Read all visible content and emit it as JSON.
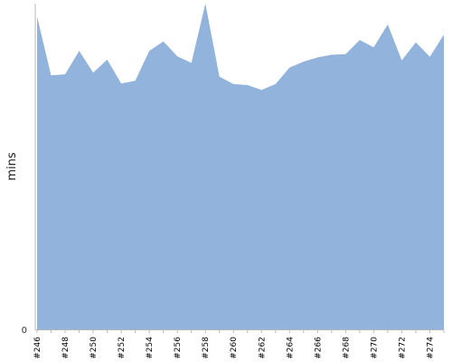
{
  "chart_data": {
    "type": "area",
    "ylabel": "mins",
    "y_tick_labels": [
      "0"
    ],
    "x_tick_labels": [
      "#246",
      "#248",
      "#250",
      "#252",
      "#254",
      "#256",
      "#258",
      "#260",
      "#262",
      "#264",
      "#266",
      "#268",
      "#270",
      "#272",
      "#274"
    ],
    "x": [
      246,
      247,
      248,
      249,
      250,
      251,
      252,
      253,
      254,
      255,
      256,
      257,
      258,
      259,
      260,
      261,
      262,
      263,
      264,
      265,
      266,
      267,
      268,
      269,
      270,
      271,
      272,
      273,
      274,
      275
    ],
    "values": [
      96,
      78,
      78.3,
      85.5,
      78.8,
      82.8,
      75.5,
      76.3,
      85.5,
      88.4,
      83.8,
      81.8,
      140,
      77.6,
      75.3,
      75,
      73.5,
      75.3,
      80.4,
      82.2,
      83.5,
      84.3,
      84.5,
      88.8,
      86.6,
      93.6,
      82.6,
      88.1,
      83.7,
      90.5
    ],
    "ylim": [
      0,
      100
    ],
    "y_clipped_at_top": true,
    "grid": false,
    "fill_color": "#91b3dc",
    "axis_color": "#b8b8b8"
  }
}
